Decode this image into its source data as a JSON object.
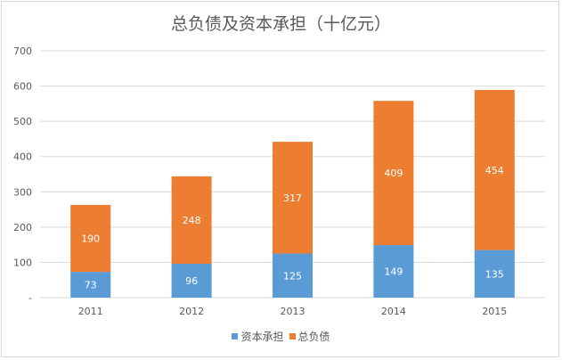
{
  "chart_data": {
    "type": "bar",
    "stacked": true,
    "title": "总负债及资本承担（十亿元）",
    "categories": [
      "2011",
      "2012",
      "2013",
      "2014",
      "2015"
    ],
    "series": [
      {
        "name": "资本承担",
        "values": [
          73,
          96,
          125,
          149,
          135
        ],
        "color": "#5b9bd5"
      },
      {
        "name": "总负债",
        "values": [
          190,
          248,
          317,
          409,
          454
        ],
        "color": "#ed7d31"
      }
    ],
    "ylim": [
      0,
      700
    ],
    "yticks": [
      "-",
      "100",
      "200",
      "300",
      "400",
      "500",
      "600",
      "700"
    ],
    "grid": true,
    "legend_position": "bottom"
  }
}
